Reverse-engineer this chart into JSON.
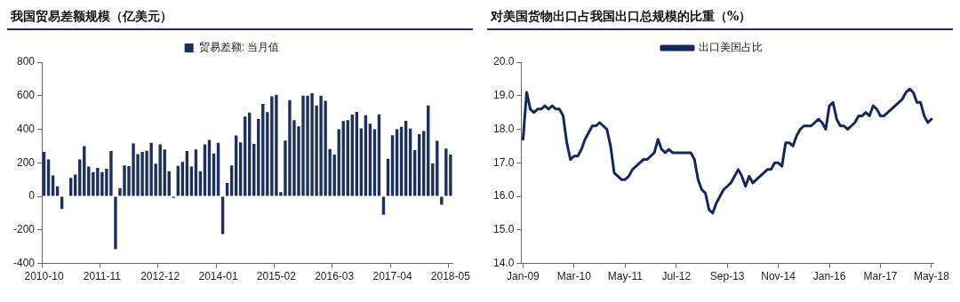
{
  "chart_data": [
    {
      "type": "bar",
      "title": "我国贸易差额规模（亿美元）",
      "categories": [
        "2010-10",
        null,
        null,
        null,
        null,
        null,
        null,
        null,
        null,
        null,
        null,
        null,
        null,
        "2011-11",
        null,
        null,
        null,
        null,
        null,
        null,
        null,
        null,
        null,
        null,
        null,
        null,
        "2012-12",
        null,
        null,
        null,
        null,
        null,
        null,
        null,
        null,
        null,
        null,
        null,
        null,
        "2014-01",
        null,
        null,
        null,
        null,
        null,
        null,
        null,
        null,
        null,
        null,
        null,
        null,
        "2015-02",
        null,
        null,
        null,
        null,
        null,
        null,
        null,
        null,
        null,
        null,
        null,
        null,
        "2016-03",
        null,
        null,
        null,
        null,
        null,
        null,
        null,
        null,
        null,
        null,
        null,
        null,
        "2017-04",
        null,
        null,
        null,
        null,
        null,
        null,
        null,
        null,
        null,
        null,
        null,
        null,
        "2018-05"
      ],
      "series": [
        {
          "name": "贸易差额: 当月值",
          "color": "#1c2f5e",
          "values": [
            265,
            220,
            125,
            60,
            -75,
            0,
            110,
            130,
            220,
            300,
            178,
            145,
            170,
            145,
            165,
            270,
            -315,
            50,
            185,
            180,
            315,
            252,
            265,
            272,
            320,
            195,
            310,
            280,
            150,
            -9,
            182,
            205,
            270,
            178,
            280,
            150,
            310,
            337,
            255,
            320,
            -225,
            80,
            185,
            363,
            322,
            476,
            500,
            313,
            462,
            551,
            502,
            596,
            605,
            25,
            333,
            573,
            455,
            418,
            600,
            600,
            615,
            542,
            600,
            569,
            282,
            249,
            400,
            449,
            455,
            487,
            504,
            405,
            484,
            433,
            400,
            489,
            -110,
            224,
            364,
            400,
            415,
            451,
            404,
            276,
            371,
            389,
            542,
            196,
            331,
            -50,
            285,
            249
          ]
        }
      ],
      "ylim": [
        -400,
        800
      ],
      "yticks": [
        -400,
        -200,
        0,
        200,
        400,
        600,
        800
      ],
      "grid": false,
      "legend": "top"
    },
    {
      "type": "line",
      "title": "对美国货物出口占我国出口总规模的比重（%）",
      "categories": [
        "Jan-09",
        null,
        null,
        null,
        null,
        null,
        null,
        null,
        null,
        null,
        null,
        null,
        null,
        null,
        "Mar-10",
        null,
        null,
        null,
        null,
        null,
        null,
        null,
        null,
        null,
        null,
        null,
        null,
        null,
        "May-11",
        null,
        null,
        null,
        null,
        null,
        null,
        null,
        null,
        null,
        null,
        null,
        null,
        null,
        "Jul-12",
        null,
        null,
        null,
        null,
        null,
        null,
        null,
        null,
        null,
        null,
        null,
        null,
        null,
        "Sep-13",
        null,
        null,
        null,
        null,
        null,
        null,
        null,
        null,
        null,
        null,
        null,
        null,
        null,
        "Nov-14",
        null,
        null,
        null,
        null,
        null,
        null,
        null,
        null,
        null,
        null,
        null,
        null,
        null,
        "Jan-16",
        null,
        null,
        null,
        null,
        null,
        null,
        null,
        null,
        null,
        null,
        null,
        null,
        null,
        "Mar-17",
        null,
        null,
        null,
        null,
        null,
        null,
        null,
        null,
        null,
        null,
        null,
        null,
        null,
        "May-18"
      ],
      "series": [
        {
          "name": "出口美国占比",
          "color": "#14285a",
          "values": [
            17.7,
            19.1,
            18.6,
            18.5,
            18.6,
            18.6,
            18.7,
            18.6,
            18.7,
            18.6,
            18.6,
            18.4,
            17.6,
            17.1,
            17.2,
            17.2,
            17.4,
            17.7,
            17.9,
            18.1,
            18.1,
            18.2,
            18.1,
            18.0,
            17.5,
            16.7,
            16.6,
            16.5,
            16.5,
            16.6,
            16.8,
            16.9,
            17.0,
            17.1,
            17.1,
            17.2,
            17.3,
            17.7,
            17.4,
            17.3,
            17.4,
            17.3,
            17.3,
            17.3,
            17.3,
            17.3,
            17.3,
            17.1,
            16.5,
            16.2,
            16.1,
            15.6,
            15.5,
            15.8,
            16.0,
            16.2,
            16.3,
            16.4,
            16.6,
            16.8,
            16.6,
            16.3,
            16.6,
            16.4,
            16.5,
            16.6,
            16.7,
            16.8,
            16.8,
            17.0,
            17.0,
            16.9,
            17.6,
            17.6,
            17.5,
            17.8,
            18.0,
            18.1,
            18.1,
            18.1,
            18.2,
            18.3,
            18.2,
            18.0,
            18.7,
            18.8,
            18.3,
            18.1,
            18.1,
            18.0,
            18.1,
            18.2,
            18.4,
            18.4,
            18.5,
            18.4,
            18.7,
            18.6,
            18.4,
            18.4,
            18.5,
            18.6,
            18.7,
            18.8,
            18.9,
            19.1,
            19.2,
            19.1,
            18.8,
            18.8,
            18.4,
            18.2,
            18.3
          ]
        }
      ],
      "ylim": [
        14,
        20
      ],
      "yticks": [
        {
          "value": 14,
          "label": "14.0"
        },
        {
          "value": 15,
          "label": "15.0"
        },
        {
          "value": 16,
          "label": "16.0"
        },
        {
          "value": 17,
          "label": "17.0"
        },
        {
          "value": 18,
          "label": "18.0"
        },
        {
          "value": 19,
          "label": "19.0"
        },
        {
          "value": 20,
          "label": "20.0"
        }
      ],
      "grid": false,
      "legend": "top",
      "marker": "none",
      "line_style": "solid"
    }
  ]
}
